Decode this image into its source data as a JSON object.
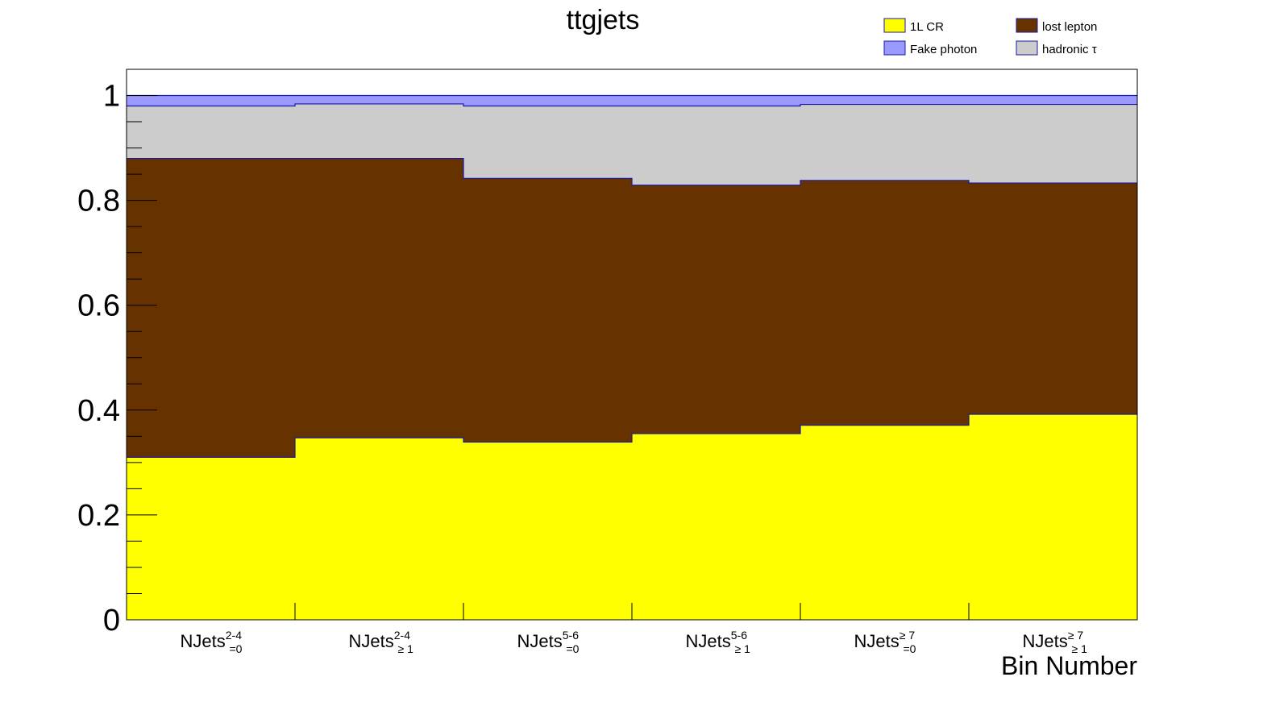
{
  "chart_data": {
    "type": "bar",
    "stacked": true,
    "title": "ttgjets",
    "xlabel": "Bin Number",
    "ylabel": "",
    "ylim": [
      0,
      1.05
    ],
    "yticks": [
      "0",
      "0.2",
      "0.4",
      "0.6",
      "0.8",
      "1"
    ],
    "categories": [
      {
        "base": "NJets",
        "sup": "2-4",
        "sub": "=0"
      },
      {
        "base": "NJets",
        "sup": "2-4",
        "sub": "≥ 1"
      },
      {
        "base": "NJets",
        "sup": "5-6",
        "sub": "=0"
      },
      {
        "base": "NJets",
        "sup": "5-6",
        "sub": "≥ 1"
      },
      {
        "base": "NJets",
        "sup": "≥ 7",
        "sub": "=0"
      },
      {
        "base": "NJets",
        "sup": "≥ 7",
        "sub": "≥ 1"
      }
    ],
    "series": [
      {
        "name": "1L CR",
        "color": "#ffff00",
        "values": [
          0.31,
          0.347,
          0.339,
          0.355,
          0.371,
          0.392
        ]
      },
      {
        "name": "lost lepton",
        "color": "#663300",
        "values": [
          0.57,
          0.533,
          0.503,
          0.474,
          0.467,
          0.441
        ]
      },
      {
        "name": "hadronic τ",
        "color": "#cccccc",
        "values": [
          0.1,
          0.104,
          0.138,
          0.151,
          0.145,
          0.15
        ]
      },
      {
        "name": "Fake photon",
        "color": "#9999ff",
        "values": [
          0.02,
          0.016,
          0.02,
          0.02,
          0.017,
          0.017
        ]
      }
    ],
    "legend": {
      "placement": "top-right",
      "order": [
        0,
        1,
        3,
        2
      ]
    },
    "grid": false
  }
}
